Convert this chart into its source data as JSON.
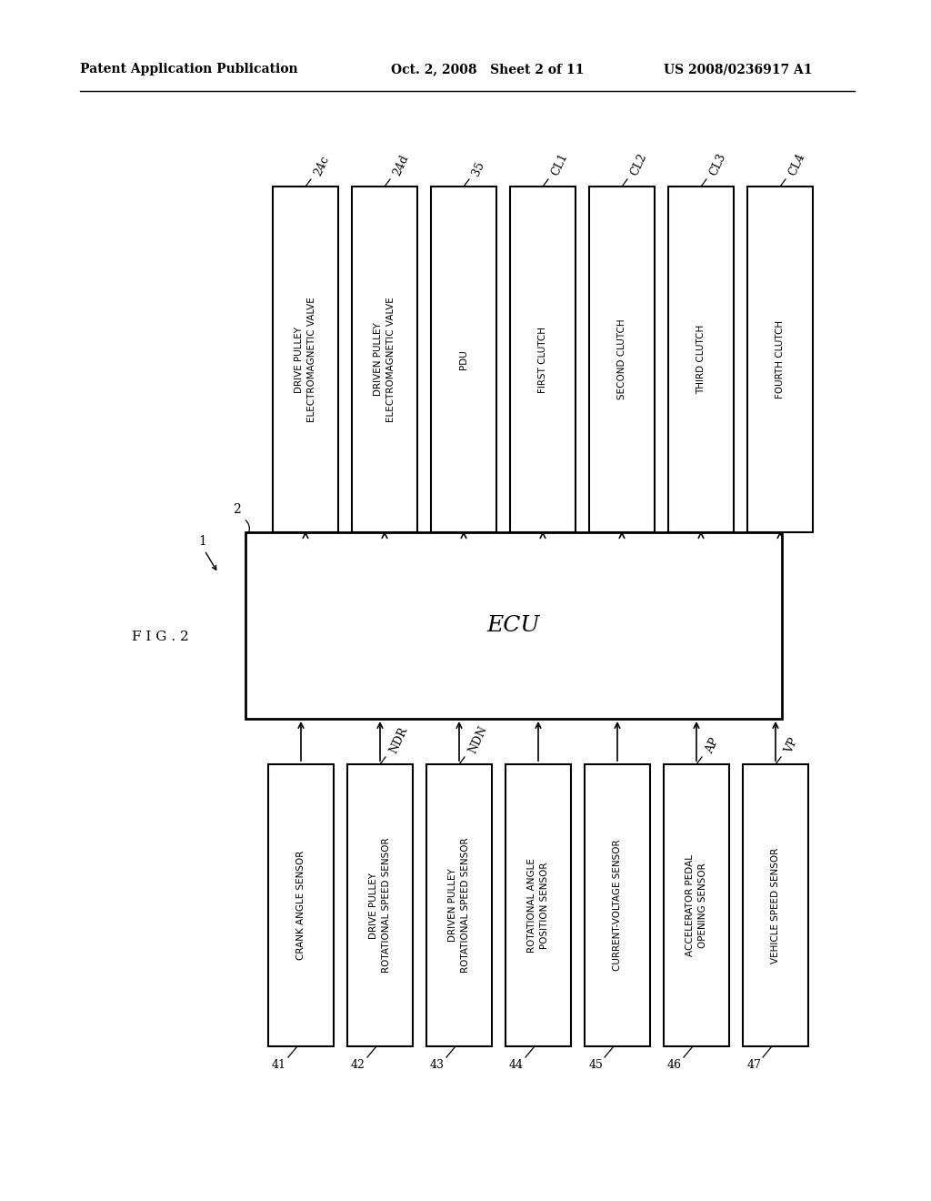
{
  "title_left": "Patent Application Publication",
  "title_mid": "Oct. 2, 2008   Sheet 2 of 11",
  "title_right": "US 2008/0236917 A1",
  "fig_label": "F I G . 2",
  "bg_color": "#ffffff",
  "text_color": "#000000",
  "output_boxes": [
    {
      "label": "24c",
      "text": "DRIVE PULLEY\nELECTROMAGNETIC VALVE"
    },
    {
      "label": "24d",
      "text": "DRIVEN PULLEY\nELECTROMAGNETIC VALVE"
    },
    {
      "label": "35",
      "text": "PDU"
    },
    {
      "label": "CL1",
      "text": "FIRST CLUTCH"
    },
    {
      "label": "CL2",
      "text": "SECOND CLUTCH"
    },
    {
      "label": "CL3",
      "text": "THIRD CLUTCH"
    },
    {
      "label": "CL4",
      "text": "FOURTH CLUTCH"
    }
  ],
  "input_boxes": [
    {
      "label": "41",
      "signal": "",
      "text": "CRANK ANGLE SENSOR"
    },
    {
      "label": "42",
      "signal": "NDR",
      "text": "DRIVE PULLEY\nROTATIONAL SPEED SENSOR"
    },
    {
      "label": "43",
      "signal": "NDN",
      "text": "DRIVEN PULLEY\nROTATIONAL SPEED SENSOR"
    },
    {
      "label": "44",
      "signal": "",
      "text": "ROTATIONAL ANGLE\nPOSITION SENSOR"
    },
    {
      "label": "45",
      "signal": "",
      "text": "CURRENT-VOLTAGE SENSOR"
    },
    {
      "label": "46",
      "signal": "AP",
      "text": "ACCELERATOR PEDAL\nOPENING SENSOR"
    },
    {
      "label": "47",
      "signal": "VP",
      "text": "VEHICLE SPEED SENSOR"
    }
  ]
}
